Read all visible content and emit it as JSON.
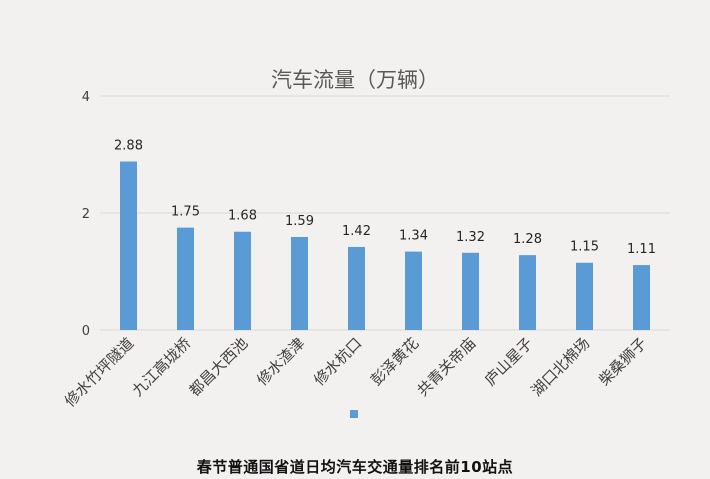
{
  "caption": "春节普通国省道日均汽车交通量排名前10站点",
  "chart_data": {
    "type": "bar",
    "title": "汽车流量（万辆）",
    "categories": [
      "修水竹坪隧道",
      "九江高垅桥",
      "都昌大西池",
      "修水渣津",
      "修水杭口",
      "彭泽黄花",
      "共青关帝庙",
      "庐山星子",
      "湖口北棉场",
      "柴桑狮子"
    ],
    "values": [
      2.88,
      1.75,
      1.68,
      1.59,
      1.42,
      1.34,
      1.32,
      1.28,
      1.15,
      1.11
    ],
    "data_labels": [
      "2.88",
      "1.75",
      "1.68",
      "1.59",
      "1.42",
      "1.34",
      "1.32",
      "1.28",
      "1.15",
      "1.11"
    ],
    "y_ticks": [
      0,
      2,
      4
    ],
    "y_tick_labels": [
      "0",
      "2",
      "4"
    ],
    "ylim": [
      0,
      4
    ],
    "xlabel": "",
    "ylabel": "",
    "grid": true,
    "legend": "bottom-center",
    "colors": {
      "bar": "#5b9bd5",
      "grid": "#d9d9d9",
      "text": "#404040"
    }
  }
}
